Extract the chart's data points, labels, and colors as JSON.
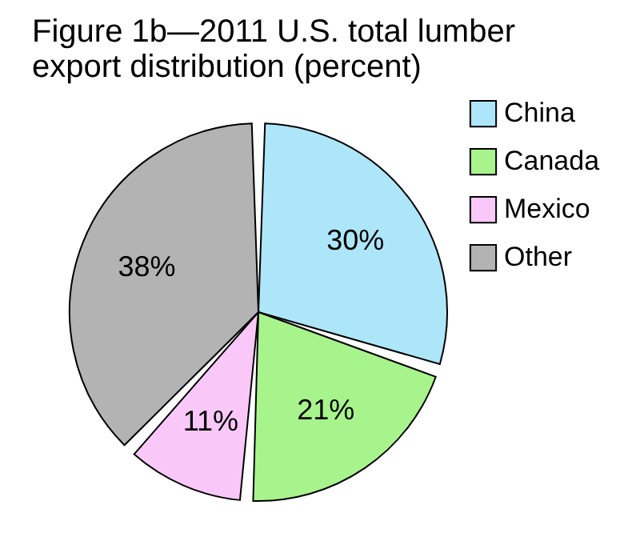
{
  "chart_data": {
    "type": "pie",
    "title": "Figure 1b—2011 U.S. total lumber export distribution (percent)",
    "categories": [
      "China",
      "Canada",
      "Mexico",
      "Other"
    ],
    "values": [
      30,
      21,
      11,
      38
    ],
    "colors": [
      "#aee6f9",
      "#a8f48c",
      "#f9c8f9",
      "#b3b3b3"
    ],
    "value_labels": [
      "30%",
      "21%",
      "11%",
      "38%"
    ],
    "legend": "right"
  }
}
